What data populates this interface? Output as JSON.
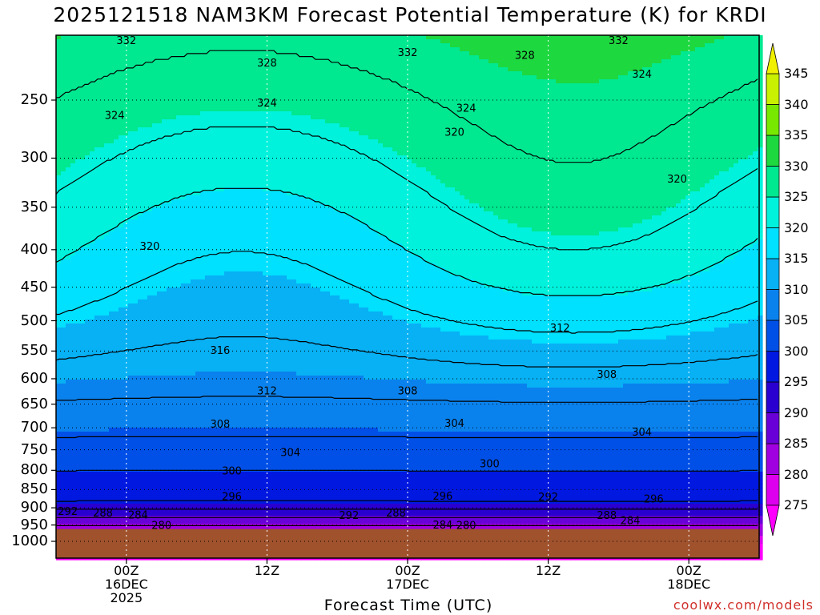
{
  "chart_data": {
    "type": "heatmap",
    "title": "2025121518 NAM3KM Forecast Potential Temperature (K) for KRDI",
    "xlabel": "Forecast Time (UTC)",
    "ylabel": "",
    "y_ticks": [
      "250",
      "300",
      "350",
      "400",
      "450",
      "500",
      "550",
      "600",
      "650",
      "700",
      "750",
      "800",
      "850",
      "900",
      "950",
      "1000"
    ],
    "y_range_hpa": [
      1000,
      200
    ],
    "x_ticks": [
      {
        "label": [
          "00Z",
          "16DEC",
          "2025"
        ],
        "hour": 6
      },
      {
        "label": [
          "12Z"
        ],
        "hour": 18
      },
      {
        "label": [
          "00Z",
          "17DEC"
        ],
        "hour": 30
      },
      {
        "label": [
          "12Z"
        ],
        "hour": 42
      },
      {
        "label": [
          "00Z",
          "18DEC"
        ],
        "hour": 54
      }
    ],
    "x_range_hours": [
      0,
      60
    ],
    "colorbar": {
      "levels": [
        275,
        280,
        285,
        290,
        295,
        300,
        305,
        310,
        315,
        320,
        325,
        330,
        335,
        340,
        345
      ],
      "colors": [
        "#ff00ff",
        "#dd00ee",
        "#a000e0",
        "#6a00d8",
        "#2a00d0",
        "#0018e0",
        "#0050e8",
        "#0a82ee",
        "#08b0f4",
        "#00e0ff",
        "#00f2dc",
        "#00e890",
        "#1ed840",
        "#78e800",
        "#c8f000",
        "#f0f000"
      ]
    },
    "contour_labels": [
      {
        "text": "332",
        "hour": 6,
        "hpa": 207
      },
      {
        "text": "328",
        "hour": 18,
        "hpa": 222
      },
      {
        "text": "324",
        "hour": 5,
        "hpa": 262
      },
      {
        "text": "324",
        "hour": 18,
        "hpa": 252
      },
      {
        "text": "332",
        "hour": 30,
        "hpa": 215
      },
      {
        "text": "324",
        "hour": 35,
        "hpa": 256
      },
      {
        "text": "320",
        "hour": 34,
        "hpa": 276
      },
      {
        "text": "328",
        "hour": 40,
        "hpa": 217
      },
      {
        "text": "332",
        "hour": 48,
        "hpa": 207
      },
      {
        "text": "324",
        "hour": 50,
        "hpa": 230
      },
      {
        "text": "320",
        "hour": 53,
        "hpa": 320
      },
      {
        "text": "320",
        "hour": 8,
        "hpa": 395
      },
      {
        "text": "316",
        "hour": 14,
        "hpa": 548
      },
      {
        "text": "312",
        "hour": 18,
        "hpa": 622
      },
      {
        "text": "308",
        "hour": 30,
        "hpa": 622
      },
      {
        "text": "312",
        "hour": 43,
        "hpa": 511
      },
      {
        "text": "308",
        "hour": 47,
        "hpa": 591
      },
      {
        "text": "308",
        "hour": 14,
        "hpa": 691
      },
      {
        "text": "304",
        "hour": 20,
        "hpa": 755
      },
      {
        "text": "304",
        "hour": 34,
        "hpa": 689
      },
      {
        "text": "304",
        "hour": 50,
        "hpa": 708
      },
      {
        "text": "300",
        "hour": 15,
        "hpa": 800
      },
      {
        "text": "300",
        "hour": 37,
        "hpa": 782
      },
      {
        "text": "296",
        "hour": 15,
        "hpa": 868
      },
      {
        "text": "296",
        "hour": 33,
        "hpa": 866
      },
      {
        "text": "292",
        "hour": 42,
        "hpa": 869
      },
      {
        "text": "296",
        "hour": 51,
        "hpa": 874
      },
      {
        "text": "292",
        "hour": 1,
        "hpa": 909
      },
      {
        "text": "288",
        "hour": 4,
        "hpa": 913
      },
      {
        "text": "284",
        "hour": 7,
        "hpa": 919
      },
      {
        "text": "280",
        "hour": 9,
        "hpa": 950
      },
      {
        "text": "292",
        "hour": 25,
        "hpa": 920
      },
      {
        "text": "288",
        "hour": 29,
        "hpa": 913
      },
      {
        "text": "284",
        "hour": 33,
        "hpa": 948
      },
      {
        "text": "280",
        "hour": 35,
        "hpa": 950
      },
      {
        "text": "288",
        "hour": 47,
        "hpa": 920
      },
      {
        "text": "284",
        "hour": 49,
        "hpa": 935
      }
    ]
  },
  "footer": {
    "credit": "coolwx.com/models"
  }
}
